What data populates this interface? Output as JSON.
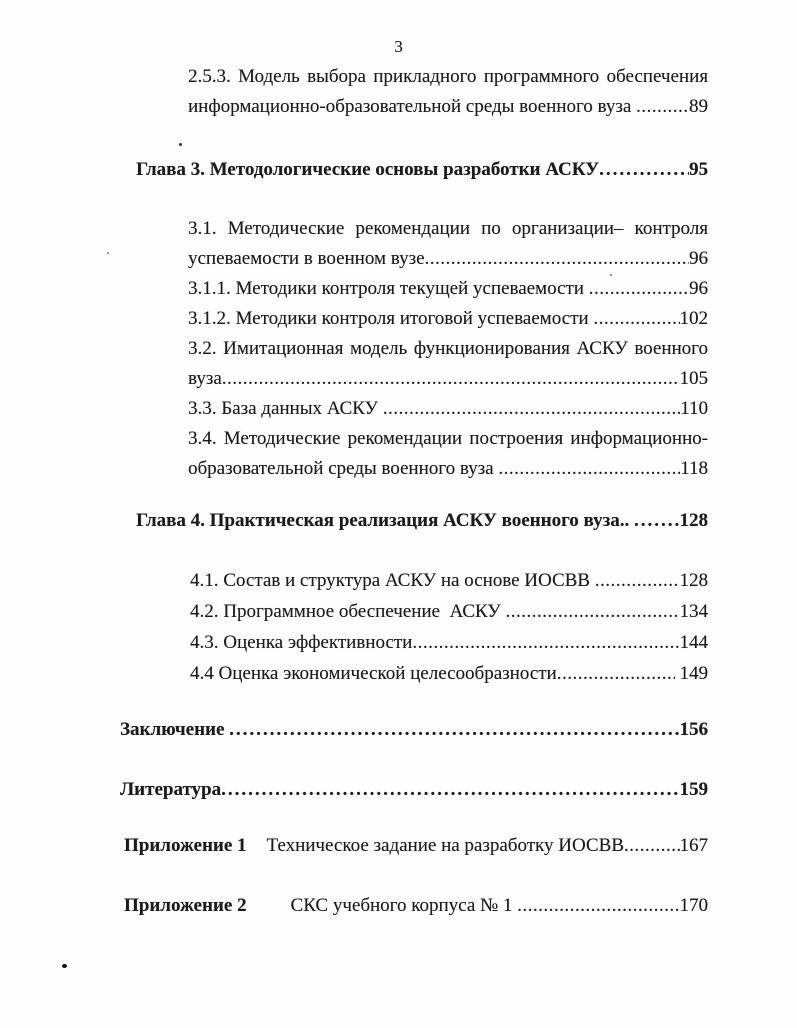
{
  "page": {
    "number": "3"
  },
  "toc": {
    "entries": [
      {
        "style": "sub",
        "lines": [
          {
            "t": "2.5.3. Модель выбора прикладного программного обеспечения",
            "justify": true
          },
          {
            "t": "информационно-образовательной среды военного вуза ",
            "dots": "...............",
            "page": "89"
          }
        ]
      },
      {
        "style": "chapter",
        "lines": [
          {
            "t": "Глава 3. Методологические основы разработки АСКУ",
            "dots": "......................",
            "page": "95"
          }
        ]
      },
      {
        "style": "sub",
        "lines": [
          {
            "t": "3.1. Методические рекомендации по организации– контроля",
            "justify": true
          },
          {
            "t": "успеваемости в военном вузе",
            "dots": "....................................................",
            "page": "96"
          },
          {
            "t": "3.1.1. Методики контроля текущей успеваемости ",
            "dots": ".......................",
            "page": "96"
          },
          {
            "t": "3.1.2. Методики контроля итоговой успеваемости ",
            "dots": ".....................",
            "page": "102"
          },
          {
            "t": "3.2. Имитационная модель функционирования АСКУ военного",
            "justify": true
          },
          {
            "t": "вуза",
            "dots": "..............................................................",
            "page": "105"
          },
          {
            "t": "3.3. База данных АСКУ ",
            "dots": "................................................",
            "page": "110"
          },
          {
            "t": "3.4. Методические рекомендации построения информационно-",
            "justify": true
          },
          {
            "t": "образовательной среды военного вуза ",
            "dots": "....................................",
            "page": "118"
          }
        ]
      },
      {
        "style": "chapter",
        "lines": [
          {
            "t": "Глава 4. Практическая реализация АСКУ военного вуза.. ",
            "dots": "...............",
            "page": "128"
          }
        ]
      },
      {
        "style": "sub4",
        "lines": [
          {
            "t": "4.1. Состав и структура АСКУ на основе ИОСВВ ",
            "dots": ".....................",
            "page": "128"
          },
          {
            "t": "4.2. Программное обеспечение  АСКУ ",
            "dots": "..................................",
            "page": "134"
          },
          {
            "t": "4.3. Оценка эффективности",
            "dots": "............................................",
            "page": "144"
          },
          {
            "t": "4.4 Оценка экономической целесообразности",
            "dots": "........................",
            "page": " 149"
          }
        ]
      },
      {
        "style": "tail",
        "lines": [
          {
            "t": "Заключение ",
            "dots": "..................................................................",
            "page": "156"
          }
        ]
      },
      {
        "style": "tail",
        "lines": [
          {
            "t": "Литература",
            "dots": "....................................................................",
            "page": "159"
          }
        ]
      },
      {
        "style": "appendix",
        "label": "Приложение 1",
        "lines": [
          {
            "t": "Техническое задание на разработку ИОСВВ",
            "dots": "................",
            "page": "167"
          }
        ]
      },
      {
        "style": "appendix",
        "label": "Приложение 2",
        "lines": [
          {
            "t": "СКС учебного корпуса № 1 ",
            "dots": "......................................",
            "page": "170"
          }
        ]
      }
    ]
  }
}
